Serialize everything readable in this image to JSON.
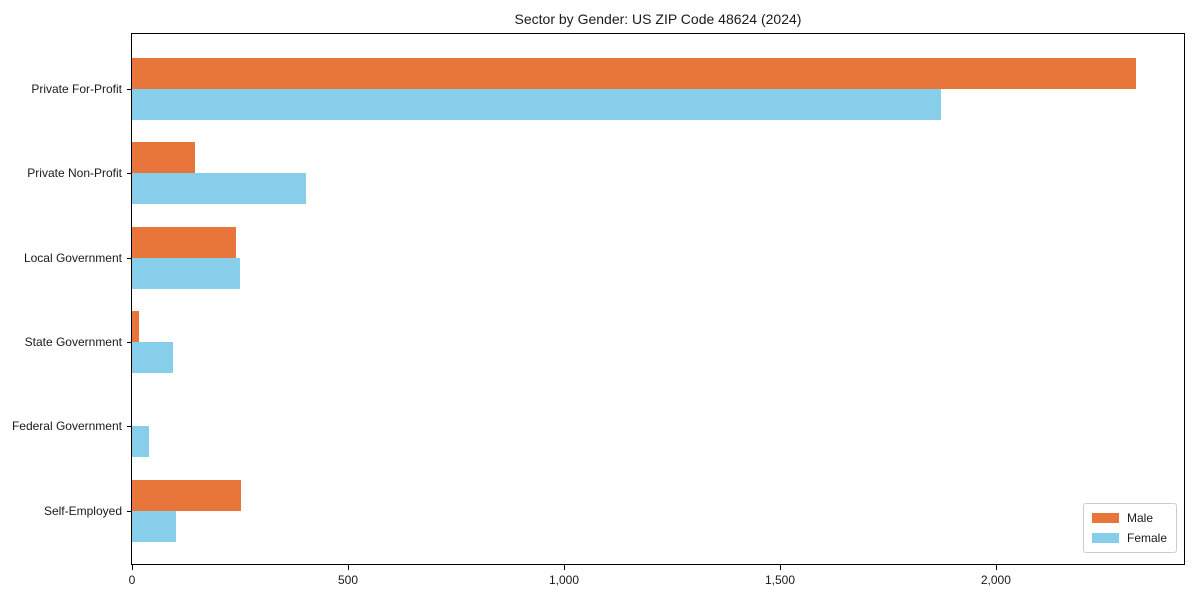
{
  "chart_data": {
    "type": "bar",
    "orientation": "horizontal",
    "title": "Sector by Gender: US ZIP Code 48624 (2024)",
    "categories": [
      "Private For-Profit",
      "Private Non-Profit",
      "Local Government",
      "State Government",
      "Federal Government",
      "Self-Employed"
    ],
    "series": [
      {
        "name": "Male",
        "color": "#e8763b",
        "values": [
          2323,
          145,
          240,
          17,
          0,
          253
        ]
      },
      {
        "name": "Female",
        "color": "#87ceeb",
        "values": [
          1872,
          402,
          251,
          95,
          40,
          102
        ]
      }
    ],
    "xlabel": "",
    "ylabel": "",
    "xlim": [
      0,
      2440
    ],
    "xticks": {
      "values": [
        0,
        500,
        1000,
        1500,
        2000
      ],
      "labels": [
        "0",
        "500",
        "1,000",
        "1,500",
        "2,000"
      ]
    },
    "grid": false,
    "legend": {
      "position": "lower-right",
      "entries": [
        "Male",
        "Female"
      ]
    }
  }
}
